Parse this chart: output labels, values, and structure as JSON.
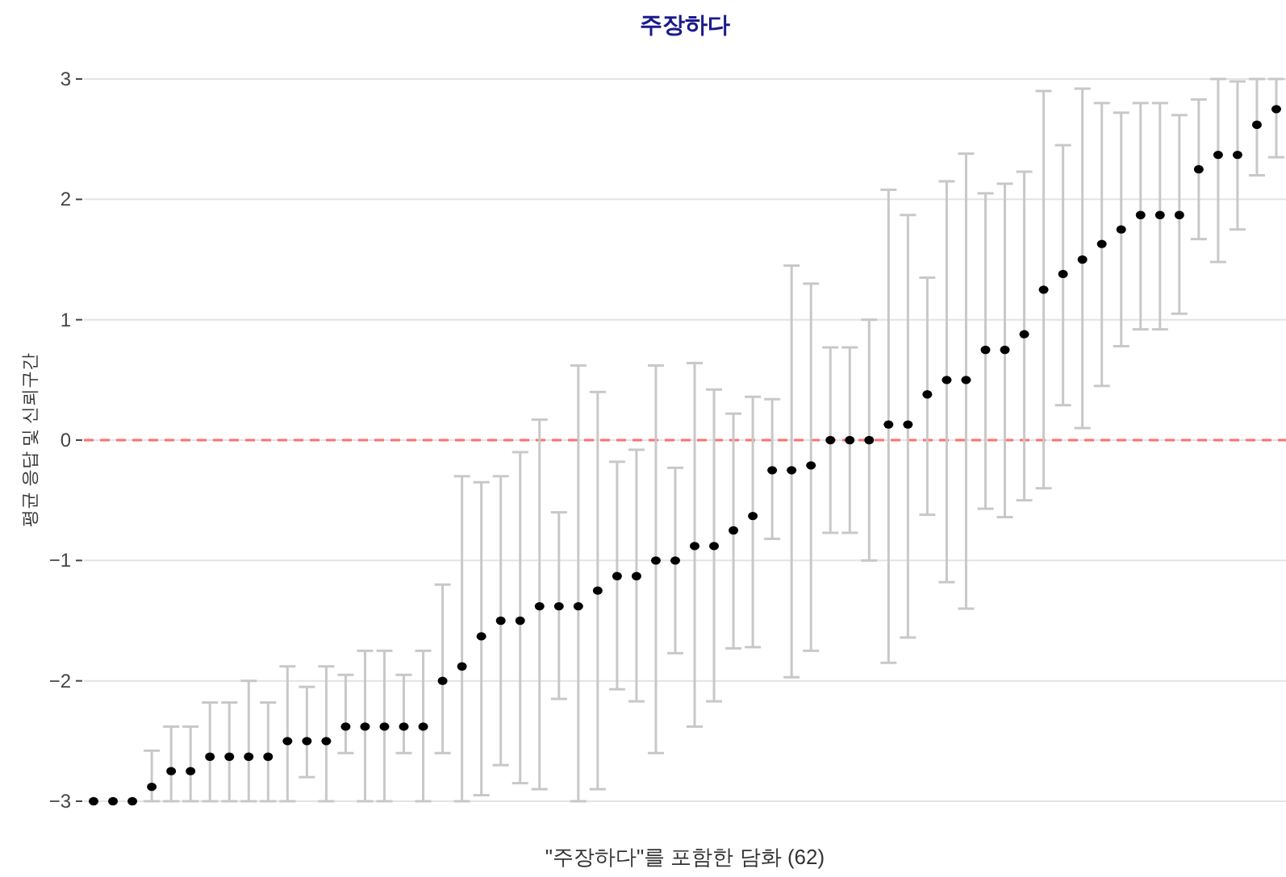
{
  "chart_data": {
    "type": "scatter",
    "title": "주장하다",
    "xlabel": "\"주장하다\"를 포함한 담화 (62)",
    "ylabel": "평균 응답 및 신뢰구간",
    "categories": [
      null,
      null,
      null,
      null,
      null,
      null,
      null,
      null,
      null,
      null,
      null,
      null,
      null,
      null,
      null,
      null,
      null,
      null,
      null,
      null,
      null,
      null,
      null,
      null,
      null,
      null,
      null,
      null,
      null,
      null,
      null,
      null,
      null,
      null,
      null,
      null,
      null,
      null,
      null,
      null,
      null,
      null,
      null,
      null,
      null,
      null,
      null,
      null,
      null,
      null,
      null,
      null,
      null,
      null,
      null,
      null,
      null,
      null,
      null,
      null,
      null,
      null
    ],
    "series": [
      {
        "color": "#000000",
        "values": [
          -3,
          -3,
          -3,
          -2.88,
          -2.75,
          -2.75,
          -2.63,
          -2.63,
          -2.63,
          -2.63,
          -2.5,
          -2.5,
          -2.5,
          -2.38,
          -2.38,
          -2.38,
          -2.38,
          -2.38,
          -2,
          -1.88,
          -1.63,
          -1.5,
          -1.5,
          -1.38,
          -1.38,
          -1.38,
          -1.25,
          -1.13,
          -1.13,
          -1,
          -1,
          -0.88,
          -0.88,
          -0.75,
          -0.63,
          -0.25,
          -0.25,
          -0.21,
          0,
          0,
          0,
          0.13,
          0.13,
          0.38,
          0.5,
          0.5,
          0.75,
          0.75,
          0.88,
          1.25,
          1.38,
          1.5,
          1.63,
          1.75,
          1.87,
          1.87,
          1.87,
          2.25,
          2.37,
          2.37,
          2.62,
          2.75
        ],
        "errors": [
          null,
          null,
          null,
          [
            -3,
            -2.58
          ],
          [
            -3,
            -2.38
          ],
          [
            -3,
            -2.38
          ],
          [
            -3,
            -2.18
          ],
          [
            -3,
            -2.18
          ],
          [
            -3,
            -2
          ],
          [
            -3,
            -2.18
          ],
          [
            -3,
            -1.88
          ],
          [
            -2.8,
            -2.05
          ],
          [
            -3,
            -1.88
          ],
          [
            -2.6,
            -1.95
          ],
          [
            -3,
            -1.75
          ],
          [
            -3,
            -1.75
          ],
          [
            -2.6,
            -1.95
          ],
          [
            -3,
            -1.75
          ],
          [
            -2.6,
            -1.2
          ],
          [
            -3,
            -0.3
          ],
          [
            -2.95,
            -0.35
          ],
          [
            -2.7,
            -0.3
          ],
          [
            -2.85,
            -0.1
          ],
          [
            -2.9,
            0.17
          ],
          [
            -2.15,
            -0.6
          ],
          [
            -3,
            0.62
          ],
          [
            -2.9,
            0.4
          ],
          [
            -2.07,
            -0.18
          ],
          [
            -2.17,
            -0.08
          ],
          [
            -2.6,
            0.62
          ],
          [
            -1.77,
            -0.23
          ],
          [
            -2.38,
            0.64
          ],
          [
            -2.17,
            0.42
          ],
          [
            -1.73,
            0.22
          ],
          [
            -1.72,
            0.36
          ],
          [
            -0.82,
            0.34
          ],
          [
            -1.97,
            1.45
          ],
          [
            -1.75,
            1.3
          ],
          [
            -0.77,
            0.77
          ],
          [
            -0.77,
            0.77
          ],
          [
            -1,
            1
          ],
          [
            -1.85,
            2.08
          ],
          [
            -1.64,
            1.87
          ],
          [
            -0.62,
            1.35
          ],
          [
            -1.18,
            2.15
          ],
          [
            -1.4,
            2.38
          ],
          [
            -0.57,
            2.05
          ],
          [
            -0.64,
            2.13
          ],
          [
            -0.5,
            2.23
          ],
          [
            -0.4,
            2.9
          ],
          [
            0.29,
            2.45
          ],
          [
            0.1,
            2.92
          ],
          [
            0.45,
            2.8
          ],
          [
            0.78,
            2.72
          ],
          [
            0.92,
            2.8
          ],
          [
            0.92,
            2.8
          ],
          [
            1.05,
            2.7
          ],
          [
            1.67,
            2.83
          ],
          [
            1.48,
            3
          ],
          [
            1.75,
            2.98
          ],
          [
            2.2,
            3
          ],
          [
            2.35,
            3
          ]
        ]
      }
    ],
    "ylim": [
      -3,
      3
    ],
    "yticks": [
      -3,
      -2,
      -1,
      0,
      1,
      2,
      3
    ],
    "grid": "y",
    "marker": "circle",
    "ref_lines": [
      {
        "axis": "y",
        "value": 0,
        "color": "#ff7070",
        "line_style": "dashed"
      }
    ]
  }
}
